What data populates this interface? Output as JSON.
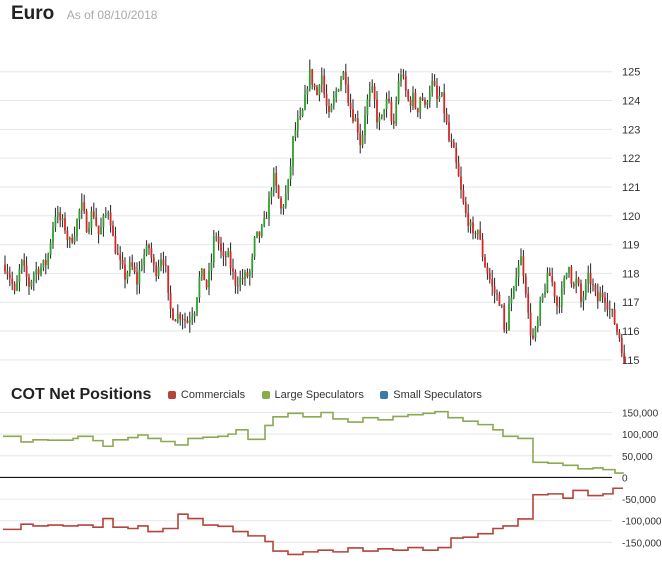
{
  "header": {
    "title": "Euro",
    "as_of": "As of 08/10/2018"
  },
  "cot": {
    "title": "COT Net Positions",
    "legend": [
      {
        "label": "Commercials",
        "color": "#b5443a"
      },
      {
        "label": "Large Speculators",
        "color": "#8aaa52"
      },
      {
        "label": "Small Speculators",
        "color": "#3d78a8"
      }
    ]
  },
  "chart_data": [
    {
      "type": "candlestick",
      "title": "Euro",
      "y_ticks": [
        "125",
        "124",
        "123",
        "122",
        "121",
        "120",
        "119",
        "118",
        "117",
        "116",
        "115"
      ],
      "ylim": [
        114.3,
        126.1
      ],
      "grid": true,
      "up_color": "#2ca02c",
      "down_color": "#d62728",
      "close_path": [
        [
          0,
          118.3
        ],
        [
          6,
          117.8
        ],
        [
          10,
          117.2
        ],
        [
          16,
          118.4
        ],
        [
          24,
          117.6
        ],
        [
          30,
          118.1
        ],
        [
          36,
          118.2
        ],
        [
          42,
          118.4
        ],
        [
          50,
          120.1
        ],
        [
          56,
          119.8
        ],
        [
          60,
          119.6
        ],
        [
          64,
          119.0
        ],
        [
          70,
          119.5
        ],
        [
          76,
          120.4
        ],
        [
          82,
          119.6
        ],
        [
          88,
          120.2
        ],
        [
          94,
          119.3
        ],
        [
          98,
          119.8
        ],
        [
          104,
          120.3
        ],
        [
          108,
          119.2
        ],
        [
          114,
          118.4
        ],
        [
          120,
          117.9
        ],
        [
          126,
          118.3
        ],
        [
          132,
          117.7
        ],
        [
          138,
          118.6
        ],
        [
          144,
          118.9
        ],
        [
          150,
          118.0
        ],
        [
          156,
          118.6
        ],
        [
          160,
          118.4
        ],
        [
          164,
          116.8
        ],
        [
          170,
          116.5
        ],
        [
          176,
          116.6
        ],
        [
          182,
          116.3
        ],
        [
          186,
          116.6
        ],
        [
          190,
          116.8
        ],
        [
          194,
          117.8
        ],
        [
          198,
          118.0
        ],
        [
          202,
          117.5
        ],
        [
          206,
          118.3
        ],
        [
          210,
          119.5
        ],
        [
          214,
          119.0
        ],
        [
          218,
          118.4
        ],
        [
          222,
          118.7
        ],
        [
          226,
          118.2
        ],
        [
          230,
          117.7
        ],
        [
          236,
          117.8
        ],
        [
          242,
          117.9
        ],
        [
          246,
          118.1
        ],
        [
          250,
          119.2
        ],
        [
          256,
          119.4
        ],
        [
          260,
          119.8
        ],
        [
          264,
          120.5
        ],
        [
          268,
          121.4
        ],
        [
          272,
          120.8
        ],
        [
          276,
          120.2
        ],
        [
          280,
          120.6
        ],
        [
          284,
          121.2
        ],
        [
          288,
          122.6
        ],
        [
          292,
          123.2
        ],
        [
          296,
          123.3
        ],
        [
          300,
          124.0
        ],
        [
          304,
          125.0
        ],
        [
          308,
          124.6
        ],
        [
          312,
          124.2
        ],
        [
          316,
          125.1
        ],
        [
          320,
          124.0
        ],
        [
          324,
          123.4
        ],
        [
          328,
          123.9
        ],
        [
          332,
          124.4
        ],
        [
          336,
          124.8
        ],
        [
          340,
          125.0
        ],
        [
          344,
          123.9
        ],
        [
          348,
          123.5
        ],
        [
          352,
          123.2
        ],
        [
          356,
          122.4
        ],
        [
          360,
          123.6
        ],
        [
          364,
          124.2
        ],
        [
          368,
          124.3
        ],
        [
          372,
          123.4
        ],
        [
          376,
          123.2
        ],
        [
          380,
          124.0
        ],
        [
          384,
          123.8
        ],
        [
          388,
          122.9
        ],
        [
          392,
          124.3
        ],
        [
          396,
          125.0
        ],
        [
          400,
          124.4
        ],
        [
          404,
          123.9
        ],
        [
          408,
          124.1
        ],
        [
          412,
          123.6
        ],
        [
          416,
          124.3
        ],
        [
          420,
          123.7
        ],
        [
          424,
          124.4
        ],
        [
          428,
          124.6
        ],
        [
          432,
          124.0
        ],
        [
          436,
          124.2
        ],
        [
          440,
          123.5
        ],
        [
          444,
          122.6
        ],
        [
          448,
          122.3
        ],
        [
          452,
          121.6
        ],
        [
          456,
          120.8
        ],
        [
          460,
          120.1
        ],
        [
          464,
          119.8
        ],
        [
          468,
          119.2
        ],
        [
          472,
          119.7
        ],
        [
          476,
          118.9
        ],
        [
          480,
          118.3
        ],
        [
          484,
          117.9
        ],
        [
          488,
          117.4
        ],
        [
          492,
          117.2
        ],
        [
          496,
          117.0
        ],
        [
          500,
          115.7
        ],
        [
          504,
          116.9
        ],
        [
          508,
          117.1
        ],
        [
          512,
          118.3
        ],
        [
          516,
          118.5
        ],
        [
          520,
          117.8
        ],
        [
          524,
          116.2
        ],
        [
          528,
          115.7
        ],
        [
          532,
          116.1
        ],
        [
          536,
          117.0
        ],
        [
          540,
          117.5
        ],
        [
          544,
          118.0
        ],
        [
          548,
          117.6
        ],
        [
          552,
          116.9
        ],
        [
          556,
          117.2
        ],
        [
          560,
          117.8
        ],
        [
          564,
          118.4
        ],
        [
          568,
          117.4
        ],
        [
          572,
          117.8
        ],
        [
          576,
          117.0
        ],
        [
          580,
          117.4
        ],
        [
          584,
          117.9
        ],
        [
          588,
          117.5
        ],
        [
          592,
          117.0
        ],
        [
          596,
          117.3
        ],
        [
          600,
          117.2
        ],
        [
          604,
          116.8
        ],
        [
          608,
          116.5
        ],
        [
          612,
          116.0
        ],
        [
          616,
          115.7
        ],
        [
          620,
          114.5
        ]
      ]
    },
    {
      "type": "step-line",
      "title": "COT Net Positions",
      "y_ticks": [
        "150,000",
        "100,000",
        "50,000",
        "0",
        "-50,000",
        "-100,000",
        "-150,000"
      ],
      "ylim": [
        -200000,
        165000
      ],
      "series": [
        {
          "name": "Large Speculators",
          "color": "#8aaa52",
          "points": [
            [
              0,
              95000
            ],
            [
              18,
              82000
            ],
            [
              30,
              87000
            ],
            [
              45,
              86000
            ],
            [
              60,
              86000
            ],
            [
              70,
              90000
            ],
            [
              75,
              95000
            ],
            [
              90,
              85000
            ],
            [
              100,
              72000
            ],
            [
              110,
              87000
            ],
            [
              125,
              92000
            ],
            [
              135,
              98000
            ],
            [
              145,
              90000
            ],
            [
              158,
              83000
            ],
            [
              172,
              75000
            ],
            [
              185,
              90000
            ],
            [
              200,
              93000
            ],
            [
              215,
              95000
            ],
            [
              225,
              100000
            ],
            [
              233,
              110000
            ],
            [
              245,
              88000
            ],
            [
              262,
              120000
            ],
            [
              270,
              140000
            ],
            [
              285,
              148000
            ],
            [
              300,
              140000
            ],
            [
              318,
              150000
            ],
            [
              330,
              135000
            ],
            [
              345,
              128000
            ],
            [
              360,
              138000
            ],
            [
              375,
              133000
            ],
            [
              390,
              141000
            ],
            [
              405,
              145000
            ],
            [
              420,
              148000
            ],
            [
              432,
              152000
            ],
            [
              445,
              138000
            ],
            [
              460,
              130000
            ],
            [
              475,
              122000
            ],
            [
              490,
              110000
            ],
            [
              500,
              95000
            ],
            [
              515,
              90000
            ],
            [
              530,
              35000
            ],
            [
              545,
              33000
            ],
            [
              560,
              28000
            ],
            [
              575,
              20000
            ],
            [
              590,
              22000
            ],
            [
              600,
              18000
            ],
            [
              612,
              10000
            ],
            [
              620,
              8000
            ]
          ]
        },
        {
          "name": "Commercials",
          "color": "#b5443a",
          "points": [
            [
              0,
              -120000
            ],
            [
              18,
              -108000
            ],
            [
              30,
              -112000
            ],
            [
              45,
              -110000
            ],
            [
              60,
              -112000
            ],
            [
              75,
              -110000
            ],
            [
              90,
              -115000
            ],
            [
              100,
              -95000
            ],
            [
              110,
              -115000
            ],
            [
              125,
              -118000
            ],
            [
              135,
              -112000
            ],
            [
              145,
              -125000
            ],
            [
              160,
              -118000
            ],
            [
              175,
              -85000
            ],
            [
              185,
              -95000
            ],
            [
              200,
              -110000
            ],
            [
              215,
              -113000
            ],
            [
              230,
              -125000
            ],
            [
              245,
              -135000
            ],
            [
              262,
              -148000
            ],
            [
              270,
              -170000
            ],
            [
              285,
              -178000
            ],
            [
              300,
              -172000
            ],
            [
              315,
              -168000
            ],
            [
              330,
              -172000
            ],
            [
              345,
              -163000
            ],
            [
              360,
              -170000
            ],
            [
              375,
              -165000
            ],
            [
              390,
              -168000
            ],
            [
              405,
              -162000
            ],
            [
              420,
              -168000
            ],
            [
              435,
              -162000
            ],
            [
              448,
              -140000
            ],
            [
              460,
              -138000
            ],
            [
              475,
              -130000
            ],
            [
              490,
              -118000
            ],
            [
              500,
              -112000
            ],
            [
              515,
              -96000
            ],
            [
              530,
              -40000
            ],
            [
              545,
              -38000
            ],
            [
              560,
              -48000
            ],
            [
              570,
              -30000
            ],
            [
              585,
              -42000
            ],
            [
              600,
              -38000
            ],
            [
              610,
              -25000
            ],
            [
              620,
              -25000
            ]
          ]
        }
      ]
    }
  ]
}
